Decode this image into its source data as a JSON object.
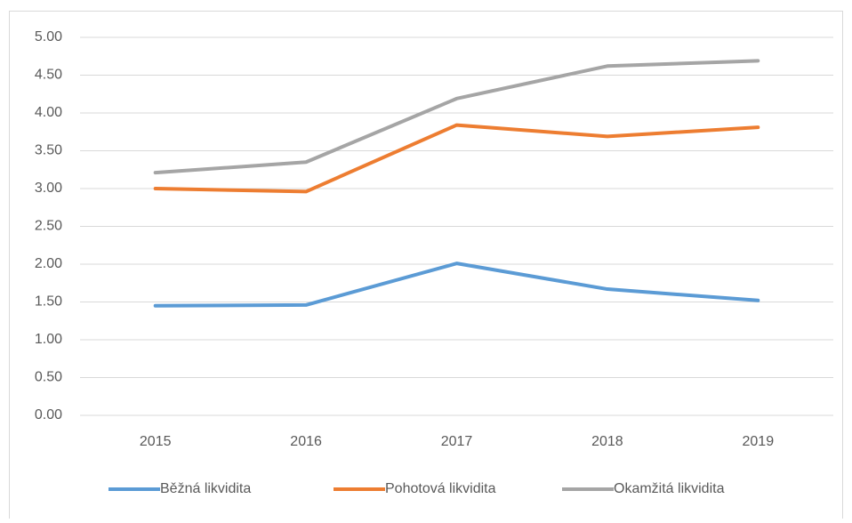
{
  "chart_data": {
    "type": "line",
    "categories": [
      "2015",
      "2016",
      "2017",
      "2018",
      "2019"
    ],
    "series": [
      {
        "name": "Běžná likvidita",
        "color": "#5b9bd5",
        "values": [
          1.45,
          1.46,
          2.01,
          1.67,
          1.52
        ]
      },
      {
        "name": "Pohotová likvidita",
        "color": "#ed7d31",
        "values": [
          3.0,
          2.96,
          3.84,
          3.69,
          3.81
        ]
      },
      {
        "name": "Okamžitá likvidita",
        "color": "#a5a5a5",
        "values": [
          3.21,
          3.35,
          4.19,
          4.62,
          4.69
        ]
      }
    ],
    "ylim": [
      0,
      5
    ],
    "yticks": [
      {
        "value": 0,
        "label": "0.00"
      },
      {
        "value": 0.5,
        "label": "0.50"
      },
      {
        "value": 1,
        "label": "1.00"
      },
      {
        "value": 1.5,
        "label": "1.50"
      },
      {
        "value": 2,
        "label": "2.00"
      },
      {
        "value": 2.5,
        "label": "2.50"
      },
      {
        "value": 3,
        "label": "3.00"
      },
      {
        "value": 3.5,
        "label": "3.50"
      },
      {
        "value": 4,
        "label": "4.00"
      },
      {
        "value": 4.5,
        "label": "4.50"
      },
      {
        "value": 5,
        "label": "5.00"
      }
    ],
    "grid": true,
    "legend": "bottom"
  }
}
